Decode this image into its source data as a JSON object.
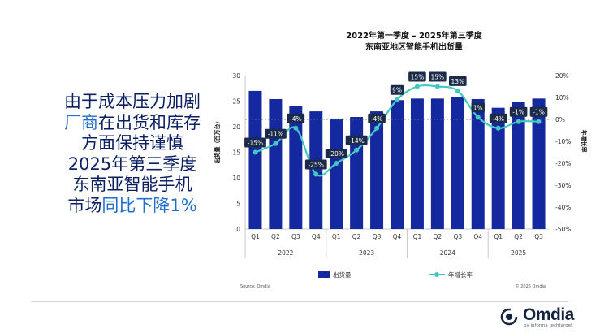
{
  "headline": {
    "line1": "由于成本压力加剧",
    "line2_a": "厂商",
    "line2_b": "在出货和库存",
    "line3": "方面保持谨慎",
    "line4": "2025年第三季度",
    "line5": "东南亚智能手机",
    "line6_a": "市场",
    "line6_b": "同比下降1%"
  },
  "logo": {
    "name": "Omdia",
    "tagline": "by informa techtarget"
  },
  "colors": {
    "bar": "#1428a0",
    "line": "#45c8c2",
    "label_bg": "#1c2b4a",
    "highlight_text": "#1f6fcf",
    "main_text": "#0b1f63"
  },
  "chart_data": {
    "type": "bar",
    "title_line1": "2022年第一季度 – 2025年第三季度",
    "title_line2": "东南亚地区智能手机出货量",
    "categories": [
      "Q1",
      "Q2",
      "Q3",
      "Q4",
      "Q1",
      "Q2",
      "Q3",
      "Q4",
      "Q1",
      "Q2",
      "Q3",
      "Q4",
      "Q1",
      "Q2",
      "Q3"
    ],
    "years": [
      {
        "label": "2022",
        "span": 4
      },
      {
        "label": "2023",
        "span": 4
      },
      {
        "label": "2024",
        "span": 4
      },
      {
        "label": "2025",
        "span": 3
      }
    ],
    "series": [
      {
        "name": "出货量",
        "type": "bar",
        "axis": "left",
        "values": [
          27,
          25.4,
          24,
          23,
          21.6,
          21.9,
          23,
          25.2,
          25.5,
          25.5,
          25.8,
          25.4,
          23.7,
          24.9,
          25.5
        ]
      },
      {
        "name": "年增长率",
        "type": "line",
        "axis": "right",
        "values": [
          -15,
          -11,
          -4,
          -25,
          -20,
          -14,
          -4,
          9,
          15,
          15,
          13,
          1,
          -4,
          -1,
          -1
        ],
        "labels": [
          "-15%",
          "-11%",
          "-4%",
          "-25%",
          "-20%",
          "-14%",
          "-4%",
          "9%",
          "15%",
          "15%",
          "13%",
          "1%",
          "-4%",
          "-1%",
          "-1%"
        ]
      }
    ],
    "ylabel": "出货量（百万台）",
    "y2label": "年增长率",
    "ylim": [
      0,
      30
    ],
    "yticks": [
      "0",
      "5",
      "10",
      "15",
      "20",
      "25",
      "30"
    ],
    "y2lim": [
      -50,
      20
    ],
    "y2ticks": [
      "-50%",
      "-40%",
      "-30%",
      "-20%",
      "-10%",
      "0%",
      "10%",
      "20%"
    ],
    "legend": [
      "出货量",
      "年增长率"
    ],
    "source": "Source: Omdia",
    "copyright": "© 2025 Omdia"
  }
}
